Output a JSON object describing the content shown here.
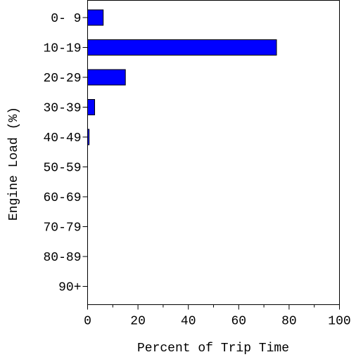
{
  "chart_data": {
    "type": "bar",
    "orientation": "horizontal",
    "title": "",
    "xlabel": "Percent of Trip Time",
    "ylabel": "Engine Load (%)",
    "categories": [
      "0- 9",
      "10-19",
      "20-29",
      "30-39",
      "40-49",
      "50-59",
      "60-69",
      "70-79",
      "80-89",
      "90+"
    ],
    "values": [
      6.2,
      75.0,
      15.0,
      2.8,
      0.6,
      0,
      0,
      0,
      0,
      0
    ],
    "xlim": [
      0,
      100
    ],
    "xticks": [
      "0",
      "20",
      "40",
      "60",
      "80",
      "100"
    ],
    "grid": false,
    "bar_color": "#0000ff"
  }
}
